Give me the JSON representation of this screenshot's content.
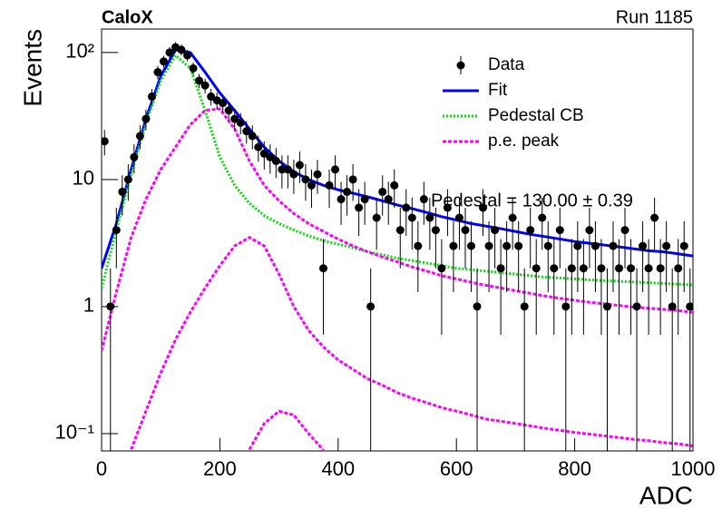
{
  "chart_data": {
    "type": "scatter",
    "title": "CaloX",
    "subtitle": "Run 1185",
    "x_label": "ADC",
    "y_label": "Events",
    "annotation": "Pedestal = 130.00 ± 0.39",
    "xlim": [
      0,
      1000
    ],
    "xticks": [
      0,
      200,
      400,
      600,
      800,
      1000
    ],
    "ylim": [
      0.073,
      153
    ],
    "yticks": [
      {
        "value": 0.1,
        "label": "10⁻¹"
      },
      1,
      10,
      {
        "value": 100,
        "label": "10²"
      }
    ],
    "log_y": true,
    "legend": "top-right",
    "data": {
      "name": "Data",
      "color": "#000000",
      "x": [
        5,
        15,
        25,
        35,
        45,
        55,
        65,
        75,
        85,
        95,
        105,
        115,
        125,
        135,
        145,
        155,
        165,
        175,
        185,
        195,
        205,
        215,
        225,
        235,
        245,
        255,
        265,
        275,
        285,
        295,
        305,
        315,
        325,
        335,
        345,
        355,
        365,
        375,
        385,
        395,
        405,
        415,
        425,
        435,
        445,
        455,
        465,
        475,
        485,
        495,
        505,
        515,
        525,
        535,
        545,
        555,
        565,
        575,
        585,
        595,
        605,
        615,
        625,
        635,
        645,
        655,
        665,
        675,
        685,
        695,
        705,
        715,
        725,
        735,
        745,
        755,
        765,
        775,
        785,
        795,
        805,
        815,
        825,
        835,
        845,
        855,
        865,
        875,
        885,
        895,
        905,
        915,
        925,
        935,
        945,
        955,
        965,
        975,
        985,
        995
      ],
      "values": [
        20,
        1,
        4,
        8,
        10,
        15,
        22,
        30,
        45,
        70,
        85,
        100,
        110,
        105,
        95,
        75,
        60,
        55,
        45,
        42,
        40,
        35,
        30,
        28,
        24,
        22,
        18,
        16,
        15,
        14,
        12,
        12,
        11,
        13,
        10,
        9,
        11,
        2,
        9,
        12,
        7,
        8,
        10,
        6,
        7,
        1,
        5,
        8,
        7,
        9,
        4,
        6,
        5,
        3,
        7,
        5,
        4,
        2,
        6,
        3,
        5,
        4,
        3,
        1,
        6,
        3,
        4,
        2,
        3,
        5,
        3,
        1,
        4,
        2,
        5,
        3,
        2,
        4,
        1,
        2,
        3,
        2,
        4,
        3,
        2,
        1,
        3,
        2,
        4,
        2,
        1,
        3,
        2,
        5,
        2,
        3,
        1,
        2,
        3,
        1
      ],
      "errors": [
        4.5,
        1,
        2,
        2.8,
        3.2,
        3.9,
        4.7,
        5.5,
        6.7,
        8.4,
        9.2,
        10,
        10.5,
        10.2,
        9.7,
        8.7,
        7.7,
        7.4,
        6.7,
        6.5,
        6.3,
        5.9,
        5.5,
        5.3,
        4.9,
        4.7,
        4.2,
        4,
        3.9,
        3.7,
        3.5,
        3.5,
        3.3,
        3.6,
        3.2,
        3,
        3.3,
        1.4,
        3,
        3.5,
        2.6,
        2.8,
        3.2,
        2.4,
        2.6,
        1,
        2.2,
        2.8,
        2.6,
        3,
        2,
        2.4,
        2.2,
        1.7,
        2.6,
        2.2,
        2,
        1.4,
        2.4,
        1.7,
        2.2,
        2,
        1.7,
        1,
        2.4,
        1.7,
        2,
        1.4,
        1.7,
        2.2,
        1.7,
        1,
        2,
        1.4,
        2.2,
        1.7,
        1.4,
        2,
        1,
        1.4,
        1.7,
        1.4,
        2,
        1.7,
        1.4,
        1,
        1.7,
        1.4,
        2,
        1.4,
        1,
        1.7,
        1.4,
        2.2,
        1.4,
        1.7,
        1,
        1.4,
        1.7,
        1
      ]
    },
    "curve_x": [
      0,
      25,
      50,
      75,
      100,
      125,
      150,
      175,
      200,
      225,
      250,
      275,
      300,
      325,
      350,
      375,
      400,
      425,
      450,
      475,
      500,
      525,
      550,
      575,
      600,
      625,
      650,
      675,
      700,
      725,
      750,
      775,
      800,
      825,
      850,
      875,
      900,
      925,
      950,
      975,
      1000
    ],
    "series": [
      {
        "name": "Fit",
        "color": "#0000ff",
        "style": "solid",
        "curves": [
          [
            2,
            4.5,
            12,
            30,
            65,
            105,
            100,
            70,
            48,
            35,
            25,
            18,
            14,
            11.5,
            10,
            9,
            8.3,
            7.8,
            7.3,
            6.8,
            6.3,
            5.9,
            5.5,
            5.1,
            4.8,
            4.5,
            4.3,
            4.1,
            3.9,
            3.7,
            3.55,
            3.4,
            3.25,
            3.15,
            3.05,
            2.95,
            2.85,
            2.75,
            2.7,
            2.6,
            2.5
          ]
        ]
      },
      {
        "name": "Pedestal CB",
        "color": "#00e000",
        "style": "dotted",
        "curves": [
          [
            1.4,
            4,
            11,
            28,
            60,
            95,
            75,
            35,
            15,
            9,
            6.5,
            5.2,
            4.5,
            4,
            3.6,
            3.3,
            3.1,
            2.9,
            2.7,
            2.55,
            2.4,
            2.3,
            2.2,
            2.1,
            2.0,
            1.95,
            1.9,
            1.85,
            1.8,
            1.75,
            1.7,
            1.68,
            1.65,
            1.62,
            1.6,
            1.58,
            1.56,
            1.54,
            1.52,
            1.5,
            1.48
          ]
        ]
      },
      {
        "name": "p.e. peak",
        "color": "#ff00ff",
        "style": "dashed",
        "curves": [
          [
            0.45,
            1.3,
            3.5,
            7,
            12,
            18,
            27,
            35,
            36,
            25,
            14,
            9,
            6.8,
            5.4,
            4.5,
            3.9,
            3.4,
            3.0,
            2.7,
            2.45,
            2.25,
            2.05,
            1.9,
            1.75,
            1.65,
            1.55,
            1.47,
            1.4,
            1.33,
            1.27,
            1.21,
            1.16,
            1.12,
            1.08,
            1.05,
            1.02,
            0.99,
            0.97,
            0.95,
            0.93,
            0.9
          ],
          [
            null,
            null,
            0.075,
            0.15,
            0.3,
            0.55,
            0.9,
            1.4,
            2.1,
            3.0,
            3.5,
            3.0,
            1.8,
            1.0,
            0.65,
            0.48,
            0.38,
            0.32,
            0.27,
            0.24,
            0.21,
            0.19,
            0.175,
            0.16,
            0.15,
            0.14,
            0.13,
            0.125,
            0.12,
            0.115,
            0.11,
            0.106,
            0.102,
            0.099,
            0.096,
            0.093,
            0.09,
            0.088,
            0.085,
            0.083,
            0.08
          ],
          [
            null,
            null,
            null,
            null,
            null,
            null,
            null,
            null,
            null,
            null,
            0.075,
            0.12,
            0.15,
            0.14,
            0.1,
            0.074,
            null,
            null,
            null,
            null,
            null,
            null,
            null,
            null,
            null,
            null,
            null,
            null,
            null,
            null,
            null,
            null,
            null,
            null,
            null,
            null,
            null,
            null,
            null,
            null,
            null
          ]
        ]
      }
    ]
  }
}
